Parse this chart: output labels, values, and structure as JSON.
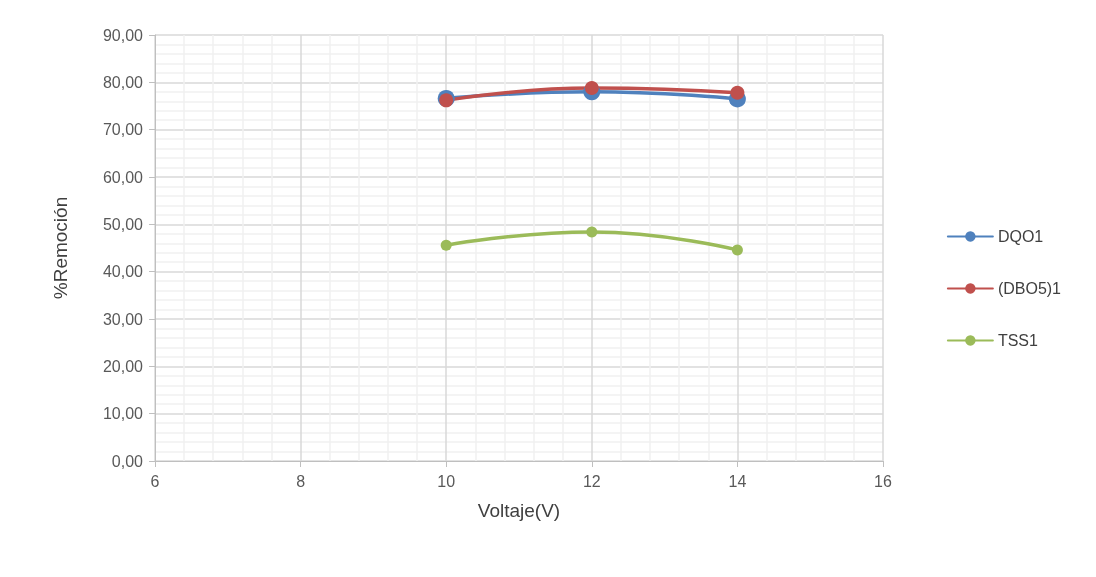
{
  "chart_data": {
    "type": "line",
    "xlabel": "Voltaje(V)",
    "ylabel": "%Remoción",
    "x": [
      10,
      12,
      14
    ],
    "series": [
      {
        "name": "DQO1",
        "color": "#4f81bd",
        "values": [
          76.6,
          78.0,
          76.5
        ]
      },
      {
        "name": "(DBO5)1",
        "color": "#c0504d",
        "values": [
          76.2,
          78.8,
          77.8
        ]
      },
      {
        "name": "TSS1",
        "color": "#9bbb59",
        "values": [
          45.6,
          48.4,
          44.6
        ]
      }
    ],
    "xlim": [
      6,
      16
    ],
    "xticks": [
      6,
      8,
      10,
      12,
      14,
      16
    ],
    "ylim": [
      0,
      90
    ],
    "yticks": [
      {
        "value": 0,
        "label": "0,00"
      },
      {
        "value": 10,
        "label": "10,00"
      },
      {
        "value": 20,
        "label": "20,00"
      },
      {
        "value": 30,
        "label": "30,00"
      },
      {
        "value": 40,
        "label": "40,00"
      },
      {
        "value": 50,
        "label": "50,00"
      },
      {
        "value": 60,
        "label": "60,00"
      },
      {
        "value": 70,
        "label": "70,00"
      },
      {
        "value": 80,
        "label": "80,00"
      },
      {
        "value": 90,
        "label": "90,00"
      }
    ],
    "grid": true,
    "legend": "right",
    "marker": "circle",
    "line_style": "solid"
  }
}
